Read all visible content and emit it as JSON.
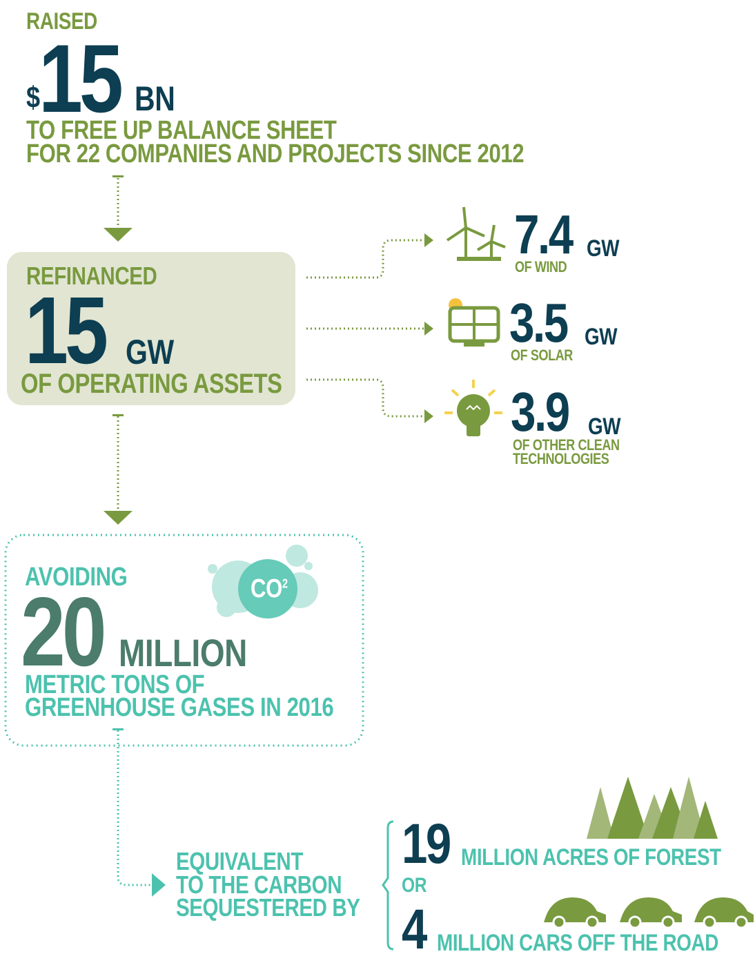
{
  "raised": {
    "label": "RAISED",
    "currency": "$",
    "amount": "15",
    "unit": "BN",
    "description": [
      "TO FREE UP BALANCE SHEET",
      "FOR 22 COMPANIES AND PROJECTS SINCE 2012"
    ]
  },
  "refinanced": {
    "label": "REFINANCED",
    "amount": "15",
    "unit": "GW",
    "description": "OF OPERATING ASSETS"
  },
  "breakdown": [
    {
      "amount": "7.4",
      "unit": "GW",
      "description": [
        "OF WIND"
      ]
    },
    {
      "amount": "3.5",
      "unit": "GW",
      "description": [
        "OF SOLAR"
      ]
    },
    {
      "amount": "3.9",
      "unit": "GW",
      "description": [
        "OF OTHER CLEAN",
        "TECHNOLOGIES"
      ]
    }
  ],
  "avoiding": {
    "label": "AVOIDING",
    "amount": "20",
    "unit": "MILLION",
    "description": [
      "METRIC TONS OF",
      "GREENHOUSE GASES IN 2016"
    ],
    "badge": "CO",
    "badge_sup": "2"
  },
  "equivalent": {
    "description": [
      "EQUIVALENT",
      "TO THE CARBON",
      "SEQUESTERED BY"
    ],
    "separator": "OR",
    "options": [
      {
        "amount": "19",
        "description": "MILLION ACRES OF FOREST"
      },
      {
        "amount": "4",
        "description": "MILLION CARS OFF THE ROAD"
      }
    ]
  }
}
